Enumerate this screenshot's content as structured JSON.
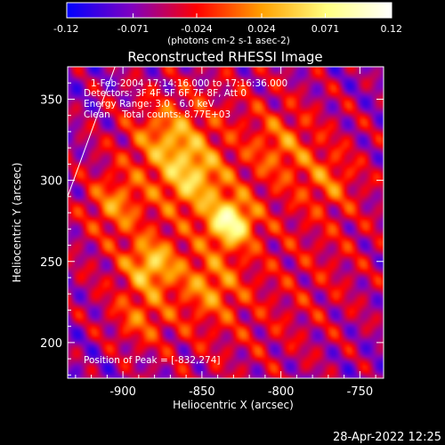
{
  "chart_data": {
    "type": "heatmap",
    "title": "Reconstructed RHESSI Image",
    "xlabel": "Heliocentric X (arcsec)",
    "ylabel": "Heliocentric Y (arcsec)",
    "xlim": [
      -935,
      -735
    ],
    "ylim": [
      178,
      370
    ],
    "x_ticks": [
      -900,
      -850,
      -800,
      -750
    ],
    "x_tick_labels": [
      "-900",
      "-850",
      "-800",
      "-750"
    ],
    "y_ticks": [
      200,
      250,
      300,
      350
    ],
    "y_tick_labels": [
      "200",
      "250",
      "300",
      "350"
    ],
    "colorbar": {
      "label": "(photons cm-2 s-1 asec-2)",
      "range": [
        -0.12,
        0.12
      ],
      "ticks": [
        -0.12,
        -0.071,
        -0.024,
        0.024,
        0.071,
        0.12
      ],
      "tick_labels": [
        "-0.12",
        "-0.071",
        "-0.024",
        "0.024",
        "0.071",
        "0.12"
      ],
      "colors": [
        "#0000ff",
        "#8000c0",
        "#ff0000",
        "#ffa000",
        "#ffff80",
        "#ffffff"
      ]
    },
    "annotations": [
      "1-Feb-2004 17:14:16.000 to 17:16:36.000",
      "Detectors: 3F 4F 5F 6F 7F 8F, Att 0",
      "Energy Range: 3.0 - 6.0 keV",
      "Clean    Total counts: 8.77E+03"
    ],
    "peak_label": "Position of Peak = [-832,274]",
    "peak": [
      -832,
      274
    ],
    "sources": [
      {
        "x": -832,
        "y": 274,
        "amp": 0.12,
        "sigma": 10
      },
      {
        "x": -882,
        "y": 248,
        "amp": 0.08,
        "sigma": 11
      },
      {
        "x": -855,
        "y": 300,
        "amp": 0.07,
        "sigma": 14
      },
      {
        "x": -870,
        "y": 325,
        "amp": 0.06,
        "sigma": 16
      },
      {
        "x": -905,
        "y": 285,
        "amp": 0.05,
        "sigma": 12
      },
      {
        "x": -845,
        "y": 235,
        "amp": 0.05,
        "sigma": 14
      },
      {
        "x": -800,
        "y": 320,
        "amp": 0.04,
        "sigma": 14
      },
      {
        "x": -770,
        "y": 300,
        "amp": 0.035,
        "sigma": 12
      },
      {
        "x": -890,
        "y": 215,
        "amp": 0.04,
        "sigma": 12
      }
    ],
    "limb_line": {
      "from": [
        -935,
        290
      ],
      "to": [
        -905,
        370
      ]
    }
  },
  "footer_timestamp": "28-Apr-2022 12:25"
}
